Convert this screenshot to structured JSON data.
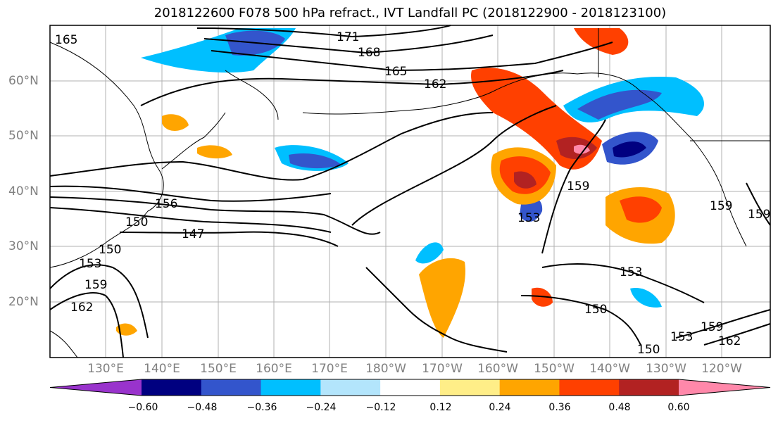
{
  "title": "2018122600 F078 500 hPa refract., IVT Landfall PC (2018122900 - 2018123100)",
  "lat_labels": [
    "60°N",
    "50°N",
    "40°N",
    "30°N",
    "20°N"
  ],
  "lon_labels": [
    "130°E",
    "140°E",
    "150°E",
    "160°E",
    "170°E",
    "180°W",
    "170°W",
    "160°W",
    "150°W",
    "140°W",
    "130°W",
    "120°W"
  ],
  "colorbar": {
    "ticks": [
      "−0.60",
      "−0.48",
      "−0.36",
      "−0.24",
      "−0.12",
      "0.12",
      "0.24",
      "0.36",
      "0.48",
      "0.60"
    ],
    "colors": [
      "#9933cc",
      "#000080",
      "#3355cc",
      "#00bfff",
      "#b3e5fc",
      "#ffffff",
      "#ffee88",
      "#ffa500",
      "#ff4000",
      "#b22222",
      "#ff88aa"
    ]
  },
  "contour_labels": [
    "171",
    "168",
    "165",
    "162",
    "159",
    "156",
    "153",
    "150",
    "147",
    "153",
    "150",
    "159",
    "153",
    "159",
    "162",
    "150",
    "153",
    "159",
    "162",
    "150",
    "159",
    "165"
  ],
  "colors": {
    "grid": "#b0b0b0",
    "coast": "#000000",
    "contour": "#000000"
  }
}
